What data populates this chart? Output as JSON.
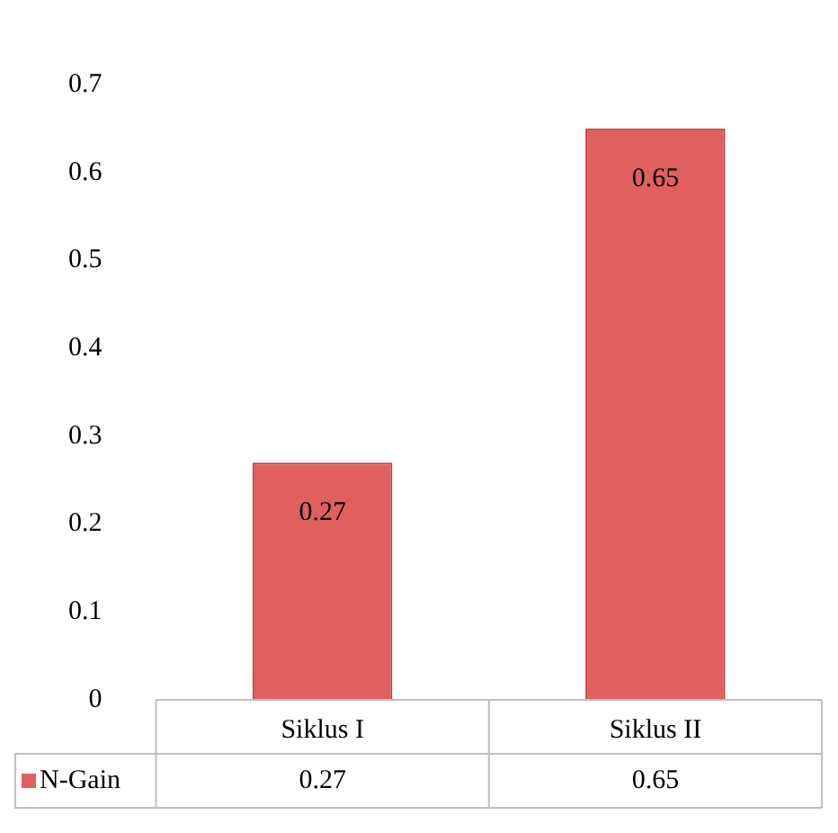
{
  "chart_data": {
    "type": "bar",
    "categories": [
      "Siklus I",
      "Siklus II"
    ],
    "series": [
      {
        "name": "N-Gain",
        "color": "#e06060",
        "values": [
          0.27,
          0.65
        ]
      }
    ],
    "ylim": [
      0,
      0.7
    ],
    "yticks": [
      0,
      0.1,
      0.2,
      0.3,
      0.4,
      0.5,
      0.6,
      0.7
    ],
    "grid": false,
    "legend": "bottom left",
    "data_labels": true,
    "annotations": [
      "0.27",
      "0.65"
    ]
  }
}
